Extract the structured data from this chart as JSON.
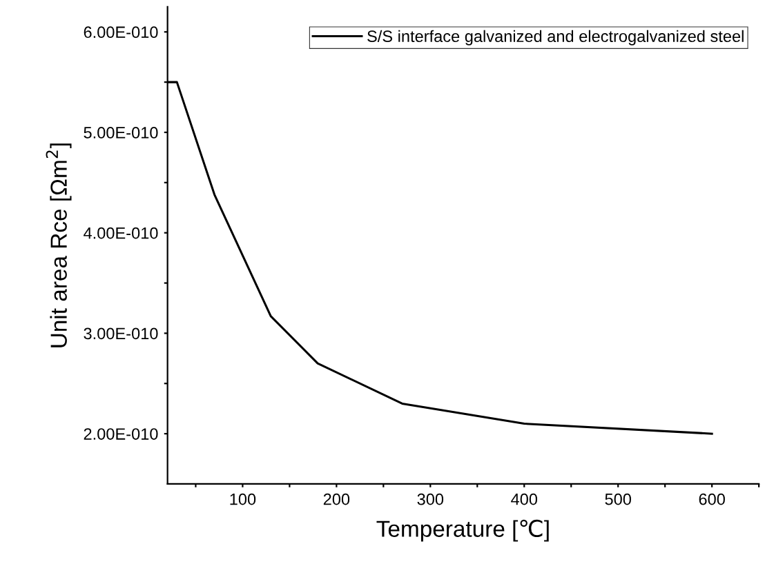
{
  "chart_data": {
    "type": "line",
    "xlabel": "Temperature [℃]",
    "ylabel": "Unit area Rce [Ωm$^{2}$]",
    "x": [
      20,
      30,
      70,
      130,
      180,
      270,
      400,
      600
    ],
    "series": [
      {
        "name": "S/S interface galvanized and electrogalvanized steel",
        "color": "#000000",
        "values": [
          5.5e-10,
          5.5e-10,
          4.38e-10,
          3.17e-10,
          2.7e-10,
          2.3e-10,
          2.1e-10,
          2e-10
        ]
      }
    ],
    "xlim": [
      20,
      650
    ],
    "xticks": [
      {
        "value": 50,
        "label": null
      },
      100,
      {
        "value": 150,
        "label": null
      },
      200,
      {
        "value": 250,
        "label": null
      },
      300,
      {
        "value": 350,
        "label": null
      },
      400,
      {
        "value": 450,
        "label": null
      },
      500,
      {
        "value": 550,
        "label": null
      },
      600,
      {
        "value": 650,
        "label": null
      }
    ],
    "ylim": [
      1.5e-10,
      6.25e-10
    ],
    "yticks": [
      {
        "value": 2e-10,
        "label": "2.00E-010"
      },
      {
        "value": 2.5e-10,
        "label": null
      },
      {
        "value": 3e-10,
        "label": "3.00E-010"
      },
      {
        "value": 3.5e-10,
        "label": null
      },
      {
        "value": 4e-10,
        "label": "4.00E-010"
      },
      {
        "value": 4.5e-10,
        "label": null
      },
      {
        "value": 5e-10,
        "label": "5.00E-010"
      },
      {
        "value": 5.5e-10,
        "label": null
      },
      {
        "value": 6e-10,
        "label": "6.00E-010"
      }
    ],
    "grid": false,
    "legend": "top right",
    "marker": "none",
    "line_style": "solid"
  }
}
